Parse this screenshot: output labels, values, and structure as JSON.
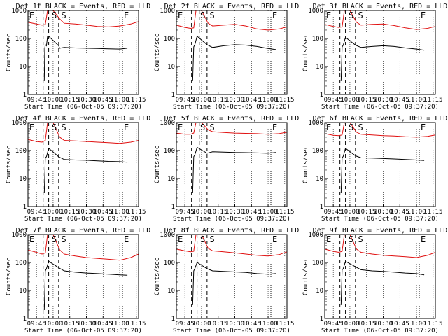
{
  "chart_data": {
    "type": "line",
    "layout": "3x3 grid of panels",
    "yscale": "log",
    "ylim": [
      1,
      1000
    ],
    "yticks": [
      "1",
      "10",
      "100",
      "1000"
    ],
    "xticks": [
      "09:45",
      "10:00",
      "10:15",
      "10:30",
      "10:45",
      "11:00",
      "11:15"
    ],
    "xlim": [
      "09:37:20",
      "11:17:00"
    ],
    "xlabel": "Start Time (06-Oct-05 09:37:20)",
    "ylabel": "Counts/sec",
    "grid": "dotted vertical lines at x ticks",
    "colors": {
      "events": "#000000",
      "lld": "#e01010"
    },
    "markers": [
      {
        "label": "E",
        "time": "09:37:20",
        "line": "none"
      },
      {
        "label": "S",
        "time": "09:57:30",
        "line": "none"
      },
      {
        "label": "S",
        "time": "10:06:00",
        "line": "none"
      },
      {
        "label": "E",
        "time": "11:02:30",
        "line": "dotted"
      }
    ],
    "panels": [
      {
        "title": "Det 1f BLACK = Events, RED = LLD",
        "lines_at": [
          "09:51",
          "09:56",
          "10:05"
        ],
        "series": [
          {
            "color": "black",
            "times": [
              "09:52",
              "09:52:30",
              "09:53",
              "09:54",
              "09:55",
              "09:56",
              "10:05",
              "10:06",
              "10:10",
              "10:20",
              "10:30",
              "10:40",
              "10:50",
              "11:00",
              "11:07"
            ],
            "values": [
              3,
              45,
              60,
              55,
              120,
              120,
              55,
              45,
              48,
              46,
              45,
              44,
              43,
              42,
              45
            ]
          },
          {
            "color": "red",
            "times": [
              "09:37:20",
              "09:45",
              "09:50",
              "09:53",
              "09:55",
              "10:00",
              "10:06",
              "10:10",
              "10:20",
              "10:30",
              "10:40",
              "10:50",
              "11:00",
              "11:10",
              "11:17"
            ],
            "values": [
              380,
              330,
              300,
              320,
              1000,
              1000,
              500,
              350,
              330,
              300,
              270,
              260,
              280,
              330,
              400
            ]
          }
        ]
      },
      {
        "title": "Det 2f BLACK = Events, RED = LLD",
        "lines_at": [
          "09:51",
          "09:58",
          "10:05"
        ],
        "series": [
          {
            "color": "black",
            "times": [
              "09:52",
              "09:53",
              "09:54",
              "09:56",
              "10:05",
              "10:10",
              "10:20",
              "10:30",
              "10:40",
              "10:50",
              "11:00",
              "11:07"
            ],
            "values": [
              3,
              50,
              60,
              120,
              60,
              48,
              55,
              60,
              58,
              52,
              44,
              40
            ]
          },
          {
            "color": "red",
            "times": [
              "09:37:20",
              "09:45",
              "09:50",
              "09:53",
              "09:55",
              "10:00",
              "10:06",
              "10:10",
              "10:20",
              "10:30",
              "10:40",
              "10:50",
              "11:00",
              "11:10",
              "11:17"
            ],
            "values": [
              300,
              250,
              230,
              240,
              1000,
              1000,
              350,
              280,
              300,
              320,
              280,
              220,
              200,
              220,
              260
            ]
          }
        ]
      },
      {
        "title": "Det 3f BLACK = Events, RED = LLD",
        "lines_at": [
          "09:51",
          "09:56",
          "10:05"
        ],
        "series": [
          {
            "color": "black",
            "times": [
              "09:52",
              "09:53",
              "09:54",
              "09:56",
              "10:05",
              "10:10",
              "10:20",
              "10:30",
              "10:40",
              "10:50",
              "11:00",
              "11:07"
            ],
            "values": [
              3,
              50,
              58,
              110,
              58,
              48,
              52,
              55,
              52,
              46,
              42,
              38
            ]
          },
          {
            "color": "red",
            "times": [
              "09:37:20",
              "09:45",
              "09:50",
              "09:53",
              "09:55",
              "10:00",
              "10:06",
              "10:10",
              "10:20",
              "10:30",
              "10:40",
              "10:50",
              "11:00",
              "11:10",
              "11:17"
            ],
            "values": [
              320,
              270,
              250,
              260,
              1000,
              1000,
              380,
              300,
              320,
              330,
              290,
              240,
              210,
              230,
              270
            ]
          }
        ]
      },
      {
        "title": "Det 4f BLACK = Events, RED = LLD",
        "lines_at": [
          "09:51",
          "09:56",
          "10:05"
        ],
        "series": [
          {
            "color": "black",
            "times": [
              "09:52",
              "09:53",
              "09:54",
              "09:56",
              "10:05",
              "10:10",
              "10:20",
              "10:30",
              "10:40",
              "10:50",
              "11:00",
              "11:07"
            ],
            "values": [
              3,
              55,
              60,
              120,
              60,
              48,
              46,
              45,
              43,
              41,
              40,
              38
            ]
          },
          {
            "color": "red",
            "times": [
              "09:37:20",
              "09:45",
              "09:50",
              "09:53",
              "09:55",
              "10:00",
              "10:06",
              "10:10",
              "10:20",
              "10:30",
              "10:40",
              "10:50",
              "11:00",
              "11:10",
              "11:17"
            ],
            "values": [
              250,
              210,
              200,
              230,
              1000,
              1000,
              300,
              230,
              220,
              210,
              200,
              190,
              180,
              200,
              230
            ]
          }
        ]
      },
      {
        "title": "Det 5f BLACK = Events, RED = LLD",
        "lines_at": [
          "09:51",
          "09:58",
          "10:05"
        ],
        "series": [
          {
            "color": "black",
            "times": [
              "09:52",
              "09:53",
              "09:54",
              "09:56",
              "10:05",
              "10:10",
              "10:20",
              "10:30",
              "10:40",
              "10:50",
              "11:00",
              "11:07"
            ],
            "values": [
              3,
              60,
              70,
              130,
              80,
              90,
              88,
              85,
              84,
              82,
              80,
              85
            ]
          },
          {
            "color": "red",
            "times": [
              "09:37:20",
              "09:45",
              "09:50",
              "09:53",
              "09:55",
              "10:00",
              "10:06",
              "10:10",
              "10:20",
              "10:30",
              "10:40",
              "10:50",
              "11:00",
              "11:10",
              "11:17"
            ],
            "values": [
              420,
              380,
              380,
              420,
              1000,
              1000,
              550,
              470,
              440,
              420,
              410,
              400,
              380,
              400,
              450
            ]
          }
        ]
      },
      {
        "title": "Det 6f BLACK = Events, RED = LLD",
        "lines_at": [
          "09:51",
          "09:56",
          "10:05"
        ],
        "series": [
          {
            "color": "black",
            "times": [
              "09:52",
              "09:53",
              "09:54",
              "09:56",
              "10:05",
              "10:10",
              "10:20",
              "10:30",
              "10:40",
              "10:50",
              "11:00",
              "11:07"
            ],
            "values": [
              3,
              55,
              62,
              120,
              65,
              55,
              54,
              52,
              50,
              48,
              46,
              44
            ]
          },
          {
            "color": "red",
            "times": [
              "09:37:20",
              "09:45",
              "09:50",
              "09:53",
              "09:55",
              "10:00",
              "10:06",
              "10:10",
              "10:20",
              "10:30",
              "10:40",
              "10:50",
              "11:00",
              "11:10",
              "11:17"
            ],
            "values": [
              400,
              350,
              340,
              360,
              1000,
              1000,
              450,
              380,
              360,
              340,
              330,
              310,
              300,
              320,
              360
            ]
          }
        ]
      },
      {
        "title": "Det 7f BLACK = Events, RED = LLD",
        "lines_at": [
          "09:51",
          "09:56",
          "10:05"
        ],
        "series": [
          {
            "color": "black",
            "times": [
              "09:52",
              "09:53",
              "09:54",
              "09:56",
              "10:05",
              "10:10",
              "10:20",
              "10:30",
              "10:40",
              "10:50",
              "11:00",
              "11:07"
            ],
            "values": [
              2,
              50,
              60,
              110,
              65,
              50,
              45,
              42,
              40,
              38,
              36,
              35
            ]
          },
          {
            "color": "red",
            "times": [
              "09:37:20",
              "09:45",
              "09:50",
              "09:53",
              "09:55",
              "10:00",
              "10:06",
              "10:10",
              "10:20",
              "10:30",
              "10:40",
              "10:50",
              "11:00",
              "11:10",
              "11:17"
            ],
            "values": [
              280,
              230,
              200,
              220,
              1000,
              1000,
              280,
              200,
              170,
              150,
              140,
              130,
              120,
              150,
              200
            ]
          }
        ]
      },
      {
        "title": "Det 8f BLACK = Events, RED = LLD",
        "lines_at": [
          "09:51",
          "09:56",
          "10:05"
        ],
        "series": [
          {
            "color": "black",
            "times": [
              "09:52",
              "09:53",
              "09:54",
              "09:56",
              "10:05",
              "10:10",
              "10:20",
              "10:30",
              "10:40",
              "10:50",
              "11:00",
              "11:07"
            ],
            "values": [
              3,
              50,
              60,
              100,
              60,
              50,
              48,
              46,
              44,
              40,
              38,
              40
            ]
          },
          {
            "color": "red",
            "times": [
              "09:37:20",
              "09:45",
              "09:50",
              "09:53",
              "09:55",
              "10:00",
              "10:06",
              "10:10",
              "10:20",
              "10:30",
              "10:40",
              "10:50",
              "11:00",
              "11:10",
              "11:17"
            ],
            "values": [
              300,
              260,
              240,
              250,
              1000,
              1000,
              320,
              260,
              240,
              220,
              200,
              180,
              170,
              190,
              240
            ]
          }
        ]
      },
      {
        "title": "Det 9f BLACK = Events, RED = LLD",
        "lines_at": [
          "09:51",
          "09:56",
          "10:05"
        ],
        "series": [
          {
            "color": "black",
            "times": [
              "09:52",
              "09:53",
              "09:54",
              "09:56",
              "10:05",
              "10:10",
              "10:20",
              "10:30",
              "10:40",
              "10:50",
              "11:00",
              "11:07"
            ],
            "values": [
              3,
              55,
              60,
              110,
              70,
              55,
              50,
              48,
              45,
              42,
              40,
              36
            ]
          },
          {
            "color": "red",
            "times": [
              "09:37:20",
              "09:45",
              "09:50",
              "09:53",
              "09:55",
              "10:00",
              "10:06",
              "10:10",
              "10:20",
              "10:30",
              "10:40",
              "10:50",
              "11:00",
              "11:10",
              "11:17"
            ],
            "values": [
              300,
              250,
              230,
              250,
              1000,
              1000,
              300,
              230,
              200,
              180,
              170,
              160,
              150,
              180,
              230
            ]
          }
        ]
      }
    ]
  }
}
